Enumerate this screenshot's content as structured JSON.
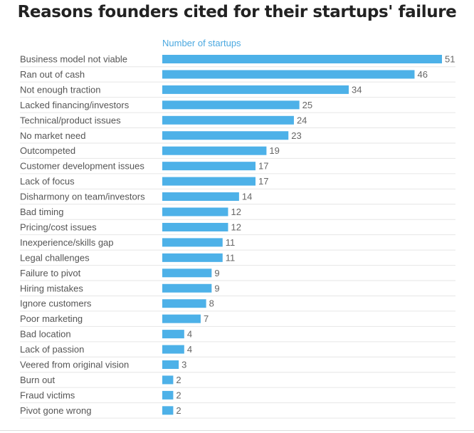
{
  "chart_data": {
    "type": "bar",
    "orientation": "horizontal",
    "title": "Reasons founders cited for their startups' failure",
    "xlabel": "Number of startups",
    "ylabel": "",
    "xlim": [
      0,
      51
    ],
    "grid": "horizontal separators",
    "bar_color": "#4db1e8",
    "title_color": "#222222",
    "xlabel_color": "#4aa8e0",
    "categories": [
      "Business model not viable",
      "Ran out of cash",
      "Not enough traction",
      "Lacked financing/investors",
      "Technical/product issues",
      "No market need",
      "Outcompeted",
      "Customer development issues",
      "Lack of focus",
      "Disharmony on team/investors",
      "Bad timing",
      "Pricing/cost issues",
      "Inexperience/skills gap",
      "Legal challenges",
      "Failure to pivot",
      "Hiring mistakes",
      "Ignore customers",
      "Poor marketing",
      "Bad location",
      "Lack of passion",
      "Veered from original vision",
      "Burn out",
      "Fraud victims",
      "Pivot gone wrong"
    ],
    "values": [
      51,
      46,
      34,
      25,
      24,
      23,
      19,
      17,
      17,
      14,
      12,
      12,
      11,
      11,
      9,
      9,
      8,
      7,
      4,
      4,
      3,
      2,
      2,
      2
    ]
  }
}
